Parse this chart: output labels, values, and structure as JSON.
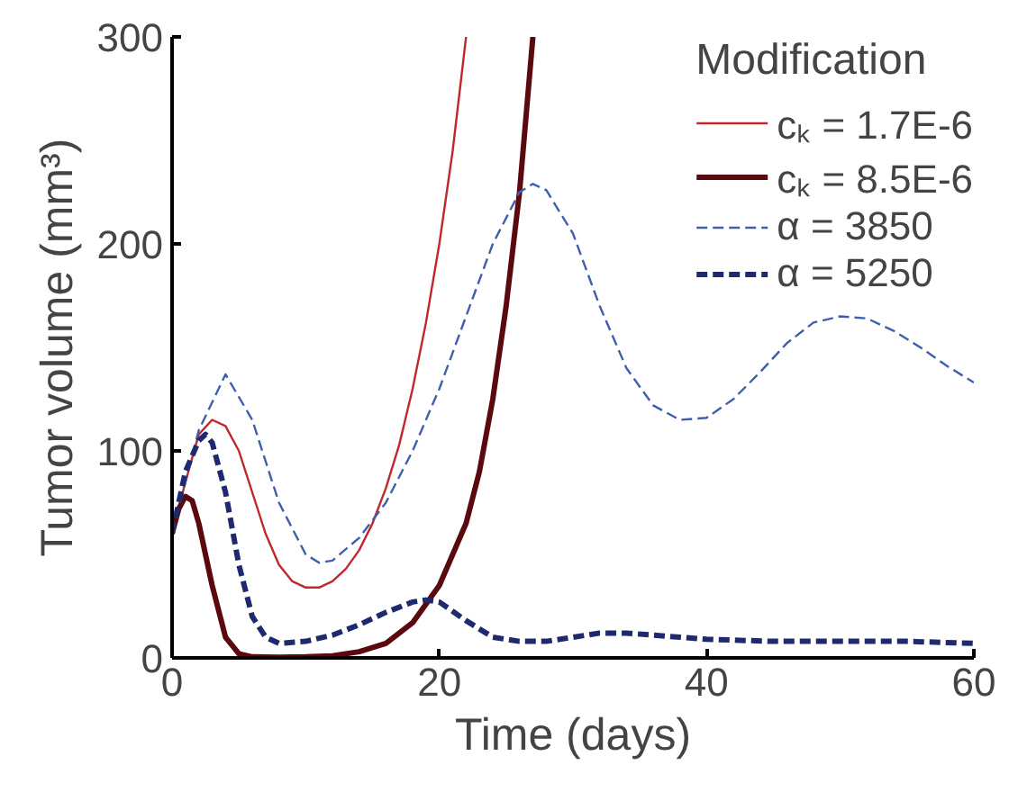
{
  "chart_data": {
    "type": "line",
    "xlabel": "Time (days)",
    "ylabel": "Tumor volume (mm³)",
    "legend_title": "Modification",
    "legend": "top right",
    "grid": false,
    "xlim": [
      0,
      60
    ],
    "ylim": [
      0,
      300
    ],
    "xticks": [
      0,
      20,
      40,
      60
    ],
    "yticks": [
      0,
      100,
      200,
      300
    ],
    "series": [
      {
        "name": "cₖ = 1.7E-6",
        "color": "#c0282d",
        "line_style": "solid",
        "x": [
          0,
          1,
          2,
          3,
          4,
          5,
          6,
          7,
          8,
          9,
          10,
          11,
          12,
          13,
          14,
          15,
          16,
          17,
          18,
          19,
          20,
          21,
          22
        ],
        "values": [
          60,
          85,
          108,
          115,
          112,
          100,
          80,
          60,
          45,
          37,
          34,
          34,
          37,
          43,
          52,
          65,
          82,
          103,
          130,
          162,
          200,
          245,
          300
        ]
      },
      {
        "name": "cₖ = 8.5E-6",
        "color": "#5a0a0f",
        "line_style": "solid",
        "x": [
          0,
          0.5,
          1,
          1.5,
          2,
          3,
          4,
          5,
          6,
          8,
          10,
          12,
          14,
          16,
          18,
          20,
          22,
          23,
          24,
          25,
          26,
          27
        ],
        "values": [
          60,
          72,
          78,
          76,
          65,
          35,
          10,
          2,
          0.5,
          0.3,
          0.5,
          1,
          3,
          7,
          17,
          35,
          65,
          90,
          125,
          170,
          225,
          300
        ]
      },
      {
        "name": "α = 3850",
        "color": "#3f5fae",
        "line_style": "dashed",
        "x": [
          0,
          2,
          4,
          6,
          8,
          10,
          11,
          12,
          14,
          16,
          18,
          20,
          22,
          24,
          26,
          27,
          28,
          30,
          32,
          34,
          36,
          38,
          40,
          42,
          44,
          46,
          48,
          50,
          52,
          54,
          56,
          58,
          60
        ],
        "values": [
          60,
          110,
          137,
          115,
          75,
          50,
          46,
          47,
          58,
          75,
          100,
          130,
          165,
          200,
          225,
          229,
          226,
          205,
          170,
          140,
          122,
          115,
          116,
          125,
          138,
          152,
          162,
          165,
          164,
          158,
          150,
          141,
          133
        ]
      },
      {
        "name": "α = 5250",
        "color": "#1f2a6e",
        "line_style": "dashed",
        "x": [
          0,
          1,
          2,
          2.5,
          3,
          4,
          5,
          6,
          7,
          8,
          10,
          12,
          14,
          16,
          18,
          19,
          20,
          22,
          24,
          26,
          28,
          30,
          32,
          34,
          36,
          38,
          40,
          45,
          50,
          55,
          60
        ],
        "values": [
          60,
          90,
          105,
          108,
          104,
          80,
          45,
          20,
          10,
          7,
          8,
          11,
          16,
          22,
          27,
          28,
          27,
          18,
          10,
          8,
          8,
          10,
          12,
          12,
          11,
          10,
          9,
          8,
          8,
          8,
          7
        ]
      }
    ]
  }
}
